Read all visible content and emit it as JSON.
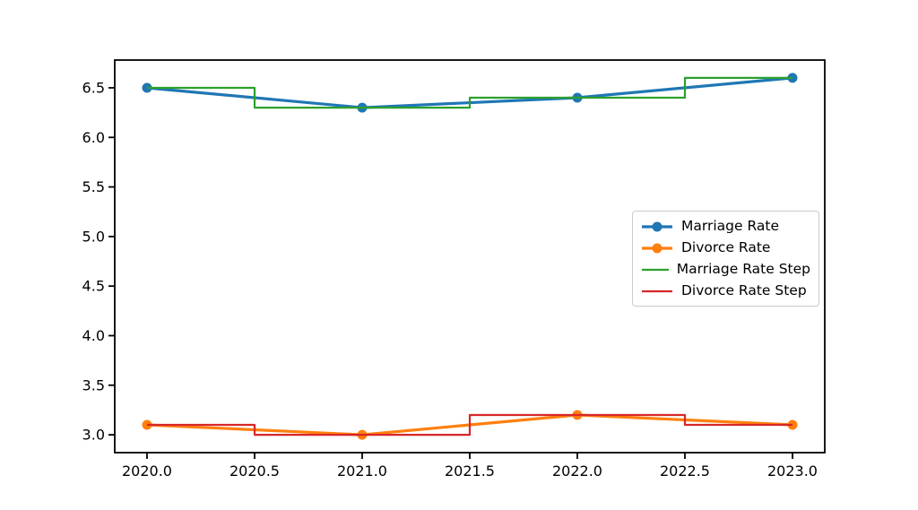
{
  "figure": {
    "background": "#ffffff",
    "title": ""
  },
  "chart_data": {
    "type": "line",
    "title": "",
    "xlabel": "",
    "ylabel": "",
    "x": [
      2020.0,
      2021.0,
      2022.0,
      2023.0
    ],
    "series": [
      {
        "name": "Marriage Rate",
        "values": [
          6.5,
          6.3,
          6.4,
          6.6
        ],
        "color": "#1f77b4",
        "style": "line",
        "marker": "circle",
        "linewidth": 3.2
      },
      {
        "name": "Divorce Rate",
        "values": [
          3.1,
          3.0,
          3.2,
          3.1
        ],
        "color": "#ff7f0e",
        "style": "line",
        "marker": "circle",
        "linewidth": 3.2
      },
      {
        "name": "Marriage Rate Step",
        "values": [
          6.5,
          6.3,
          6.4,
          6.6
        ],
        "color": "#2ca02c",
        "style": "step-mid",
        "marker": "none",
        "linewidth": 2.2
      },
      {
        "name": "Divorce Rate Step",
        "values": [
          3.1,
          3.0,
          3.2,
          3.1
        ],
        "color": "#d62728",
        "style": "step-mid",
        "marker": "none",
        "linewidth": 2.2
      }
    ],
    "xlim": [
      2019.85,
      2023.15
    ],
    "ylim": [
      2.82,
      6.78
    ],
    "xticks": {
      "values": [
        2020.0,
        2020.5,
        2021.0,
        2021.5,
        2022.0,
        2022.5,
        2023.0
      ],
      "labels": [
        "2020.0",
        "2020.5",
        "2021.0",
        "2021.5",
        "2022.0",
        "2022.5",
        "2023.0"
      ]
    },
    "yticks": {
      "values": [
        3.0,
        3.5,
        4.0,
        4.5,
        5.0,
        5.5,
        6.0,
        6.5
      ],
      "labels": [
        "3.0",
        "3.5",
        "4.0",
        "4.5",
        "5.0",
        "5.5",
        "6.0",
        "6.5"
      ]
    },
    "grid": false,
    "legend": {
      "location": "center right"
    }
  },
  "colors": {
    "spine": "#000000",
    "tick": "#000000",
    "tick_label": "#000000",
    "marker_radius": 5.5,
    "legend_border": "#cbcbcb",
    "legend_background": "#ffffff"
  }
}
